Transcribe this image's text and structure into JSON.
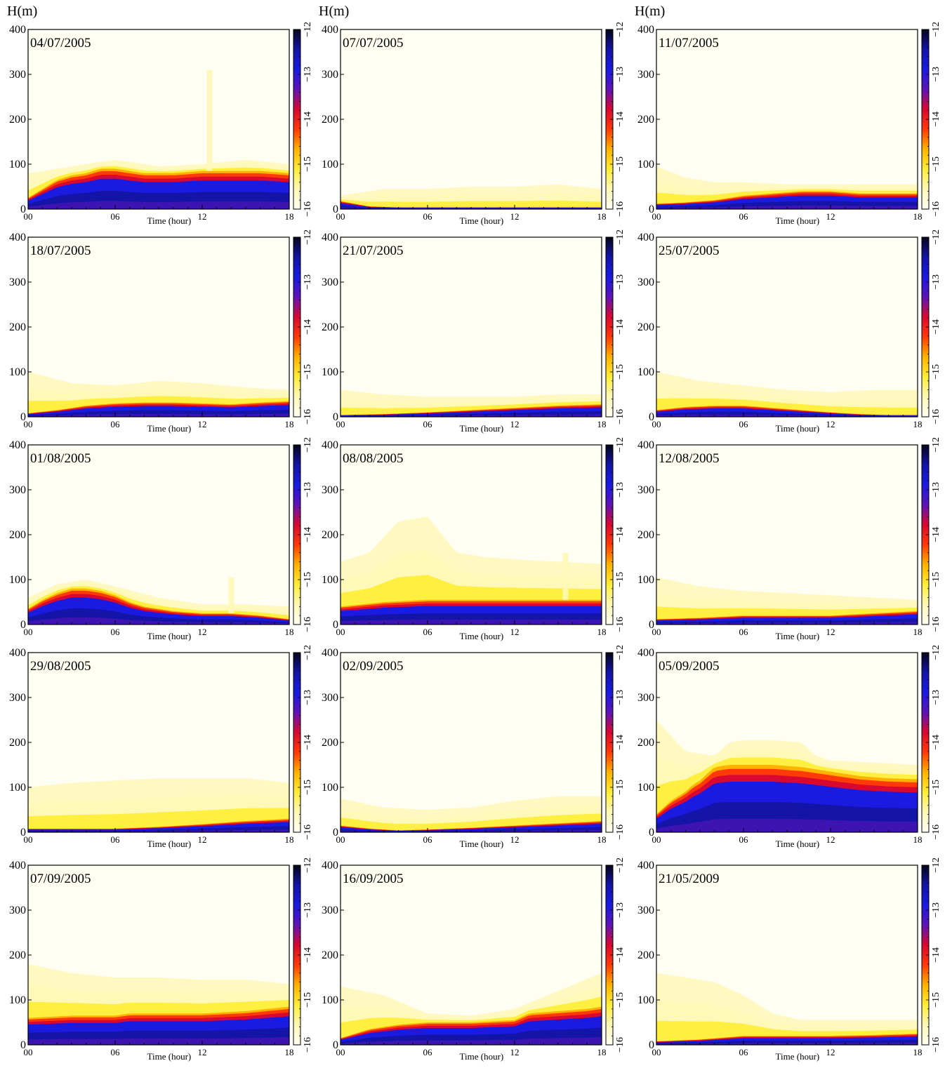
{
  "figure": {
    "column_header": "H(m)",
    "x_axis_label": "Time (hour)",
    "y_ticks": [
      "0",
      "100",
      "200",
      "300",
      "400"
    ],
    "x_ticks": [
      "00",
      "06",
      "12",
      "18"
    ],
    "colorbar_ticks": [
      "−16",
      "−15",
      "−14",
      "−13",
      "−12"
    ],
    "colormap": [
      "#fffef2",
      "#fff8b8",
      "#ffee3a",
      "#ffb200",
      "#ff3a08",
      "#d80830",
      "#5e14b8",
      "#1a1ae0",
      "#1414a8",
      "#040418"
    ]
  },
  "chart_data": [
    {
      "type": "heatmap",
      "title": "04/07/2005",
      "xlim": [
        0,
        18
      ],
      "ylim": [
        0,
        400
      ],
      "clim": [
        -16,
        -12
      ],
      "boundary_layer_top_m": {
        "x": [
          0,
          1,
          2,
          3,
          4,
          5,
          6,
          7,
          8,
          10,
          12,
          14,
          16,
          18
        ],
        "y": [
          25,
          45,
          65,
          75,
          80,
          90,
          90,
          85,
          80,
          80,
          85,
          85,
          85,
          80
        ]
      },
      "diffuse_top_m": {
        "x": [
          0,
          3,
          6,
          9,
          12,
          15,
          18
        ],
        "y": [
          80,
          95,
          110,
          95,
          100,
          110,
          100
        ]
      },
      "plumes": [
        {
          "x": 12.5,
          "top_m": 310
        }
      ]
    },
    {
      "type": "heatmap",
      "title": "07/07/2005",
      "xlim": [
        0,
        18
      ],
      "ylim": [
        0,
        400
      ],
      "clim": [
        -16,
        -12
      ],
      "boundary_layer_top_m": {
        "x": [
          0,
          1,
          2,
          4,
          8,
          12,
          18
        ],
        "y": [
          18,
          12,
          6,
          4,
          4,
          4,
          4
        ]
      },
      "diffuse_top_m": {
        "x": [
          0,
          3,
          6,
          9,
          12,
          15,
          18
        ],
        "y": [
          30,
          45,
          45,
          50,
          50,
          55,
          45
        ]
      }
    },
    {
      "type": "heatmap",
      "title": "11/07/2005",
      "xlim": [
        0,
        18
      ],
      "ylim": [
        0,
        400
      ],
      "clim": [
        -16,
        -12
      ],
      "boundary_layer_top_m": {
        "x": [
          0,
          2,
          4,
          6,
          8,
          10,
          12,
          14,
          16,
          18
        ],
        "y": [
          12,
          15,
          20,
          30,
          35,
          40,
          40,
          35,
          35,
          35
        ]
      },
      "diffuse_top_m": {
        "x": [
          0,
          2,
          4,
          6,
          9,
          12,
          15,
          18
        ],
        "y": [
          95,
          70,
          60,
          60,
          55,
          55,
          55,
          55
        ]
      }
    },
    {
      "type": "heatmap",
      "title": "18/07/2005",
      "xlim": [
        0,
        18
      ],
      "ylim": [
        0,
        400
      ],
      "clim": [
        -16,
        -12
      ],
      "boundary_layer_top_m": {
        "x": [
          0,
          2,
          4,
          6,
          8,
          10,
          12,
          14,
          16,
          18
        ],
        "y": [
          8,
          15,
          25,
          30,
          32,
          32,
          30,
          28,
          32,
          35
        ]
      },
      "diffuse_top_m": {
        "x": [
          0,
          3,
          6,
          9,
          12,
          15,
          18
        ],
        "y": [
          100,
          75,
          70,
          80,
          75,
          65,
          60
        ]
      }
    },
    {
      "type": "heatmap",
      "title": "21/07/2005",
      "xlim": [
        0,
        18
      ],
      "ylim": [
        0,
        400
      ],
      "clim": [
        -16,
        -12
      ],
      "boundary_layer_top_m": {
        "x": [
          0,
          3,
          6,
          9,
          12,
          15,
          18
        ],
        "y": [
          4,
          6,
          10,
          15,
          20,
          25,
          28
        ]
      },
      "diffuse_top_m": {
        "x": [
          0,
          3,
          6,
          9,
          12,
          15,
          18
        ],
        "y": [
          60,
          50,
          45,
          45,
          45,
          50,
          50
        ]
      }
    },
    {
      "type": "heatmap",
      "title": "25/07/2005",
      "xlim": [
        0,
        18
      ],
      "ylim": [
        0,
        400
      ],
      "clim": [
        -16,
        -12
      ],
      "boundary_layer_top_m": {
        "x": [
          0,
          2,
          4,
          6,
          8,
          10,
          12,
          14,
          16,
          18
        ],
        "y": [
          15,
          22,
          25,
          25,
          20,
          15,
          10,
          6,
          4,
          4
        ]
      },
      "diffuse_top_m": {
        "x": [
          0,
          3,
          6,
          9,
          12,
          15,
          18
        ],
        "y": [
          100,
          80,
          70,
          60,
          55,
          60,
          60
        ]
      }
    },
    {
      "type": "heatmap",
      "title": "01/08/2005",
      "xlim": [
        0,
        18
      ],
      "ylim": [
        0,
        400
      ],
      "clim": [
        -16,
        -12
      ],
      "boundary_layer_top_m": {
        "x": [
          0,
          1,
          2,
          3,
          4,
          5,
          6,
          7,
          8,
          10,
          12,
          14,
          16,
          18
        ],
        "y": [
          35,
          55,
          70,
          80,
          80,
          75,
          65,
          50,
          40,
          30,
          25,
          25,
          20,
          12
        ]
      },
      "diffuse_top_m": {
        "x": [
          0,
          2,
          4,
          6,
          9,
          12,
          15,
          18
        ],
        "y": [
          60,
          90,
          100,
          85,
          60,
          45,
          45,
          40
        ]
      },
      "plumes": [
        {
          "x": 14,
          "top_m": 105
        }
      ]
    },
    {
      "type": "heatmap",
      "title": "08/08/2005",
      "xlim": [
        0,
        18
      ],
      "ylim": [
        0,
        400
      ],
      "clim": [
        -16,
        -12
      ],
      "boundary_layer_top_m": {
        "x": [
          0,
          3,
          6,
          9,
          12,
          15,
          18
        ],
        "y": [
          40,
          50,
          55,
          55,
          55,
          55,
          55
        ]
      },
      "diffuse_top_m": {
        "x": [
          0,
          2,
          4,
          6,
          8,
          10,
          12,
          15,
          18
        ],
        "y": [
          140,
          160,
          230,
          240,
          160,
          150,
          145,
          140,
          135
        ]
      },
      "plumes": [
        {
          "x": 15.5,
          "top_m": 160
        }
      ]
    },
    {
      "type": "heatmap",
      "title": "12/08/2005",
      "xlim": [
        0,
        18
      ],
      "ylim": [
        0,
        400
      ],
      "clim": [
        -16,
        -12
      ],
      "boundary_layer_top_m": {
        "x": [
          0,
          3,
          6,
          9,
          12,
          15,
          18
        ],
        "y": [
          12,
          15,
          20,
          20,
          20,
          25,
          30
        ]
      },
      "diffuse_top_m": {
        "x": [
          0,
          3,
          6,
          9,
          12,
          15,
          18
        ],
        "y": [
          105,
          85,
          75,
          70,
          65,
          60,
          55
        ]
      }
    },
    {
      "type": "heatmap",
      "title": "29/08/2005",
      "xlim": [
        0,
        18
      ],
      "ylim": [
        0,
        400
      ],
      "clim": [
        -16,
        -12
      ],
      "boundary_layer_top_m": {
        "x": [
          0,
          3,
          6,
          9,
          12,
          15,
          18
        ],
        "y": [
          8,
          8,
          8,
          12,
          18,
          25,
          30
        ]
      },
      "diffuse_top_m": {
        "x": [
          0,
          3,
          6,
          9,
          12,
          15,
          18
        ],
        "y": [
          100,
          110,
          115,
          120,
          120,
          120,
          110
        ]
      }
    },
    {
      "type": "heatmap",
      "title": "02/09/2005",
      "xlim": [
        0,
        18
      ],
      "ylim": [
        0,
        400
      ],
      "clim": [
        -16,
        -12
      ],
      "boundary_layer_top_m": {
        "x": [
          0,
          2,
          4,
          6,
          9,
          12,
          15,
          18
        ],
        "y": [
          15,
          8,
          4,
          6,
          10,
          15,
          20,
          25
        ]
      },
      "diffuse_top_m": {
        "x": [
          0,
          3,
          6,
          9,
          12,
          15,
          18
        ],
        "y": [
          75,
          55,
          50,
          55,
          70,
          80,
          80
        ]
      }
    },
    {
      "type": "heatmap",
      "title": "05/09/2005",
      "xlim": [
        0,
        18
      ],
      "ylim": [
        0,
        400
      ],
      "clim": [
        -16,
        -12
      ],
      "boundary_layer_top_m": {
        "x": [
          0,
          0.5,
          1,
          1.5,
          2,
          2.5,
          3,
          3.5,
          4,
          5,
          6,
          8,
          10,
          12,
          14,
          16,
          18
        ],
        "y": [
          40,
          55,
          70,
          80,
          90,
          105,
          115,
          130,
          145,
          150,
          150,
          150,
          145,
          135,
          125,
          120,
          118
        ]
      },
      "diffuse_top_m": {
        "x": [
          0,
          2,
          4,
          5,
          6,
          8,
          10,
          11,
          12,
          15,
          18
        ],
        "y": [
          250,
          180,
          170,
          200,
          205,
          205,
          200,
          170,
          160,
          155,
          150
        ]
      }
    },
    {
      "type": "heatmap",
      "title": "07/09/2005",
      "xlim": [
        0,
        18
      ],
      "ylim": [
        0,
        400
      ],
      "clim": [
        -16,
        -12
      ],
      "boundary_layer_top_m": {
        "x": [
          0,
          3,
          6,
          7,
          9,
          12,
          15,
          18
        ],
        "y": [
          60,
          65,
          65,
          70,
          70,
          70,
          75,
          85
        ]
      },
      "diffuse_top_m": {
        "x": [
          0,
          3,
          6,
          9,
          12,
          15,
          18
        ],
        "y": [
          180,
          160,
          150,
          150,
          145,
          145,
          135
        ]
      }
    },
    {
      "type": "heatmap",
      "title": "16/09/2005",
      "xlim": [
        0,
        18
      ],
      "ylim": [
        0,
        400
      ],
      "clim": [
        -16,
        -12
      ],
      "boundary_layer_top_m": {
        "x": [
          0,
          1,
          2,
          3,
          4,
          6,
          9,
          12,
          13,
          15,
          17,
          18
        ],
        "y": [
          15,
          25,
          35,
          40,
          45,
          50,
          50,
          55,
          70,
          75,
          80,
          85
        ]
      },
      "diffuse_top_m": {
        "x": [
          0,
          3,
          6,
          9,
          12,
          15,
          18
        ],
        "y": [
          130,
          110,
          70,
          65,
          80,
          120,
          160
        ]
      }
    },
    {
      "type": "heatmap",
      "title": "21/05/2009",
      "xlim": [
        0,
        18
      ],
      "ylim": [
        0,
        400
      ],
      "clim": [
        -16,
        -12
      ],
      "boundary_layer_top_m": {
        "x": [
          0,
          3,
          6,
          9,
          12,
          15,
          18
        ],
        "y": [
          8,
          12,
          20,
          20,
          20,
          22,
          25
        ]
      },
      "diffuse_top_m": {
        "x": [
          0,
          2,
          4,
          6,
          8,
          10,
          12,
          15,
          18
        ],
        "y": [
          160,
          150,
          140,
          110,
          70,
          55,
          55,
          55,
          55
        ]
      }
    }
  ]
}
